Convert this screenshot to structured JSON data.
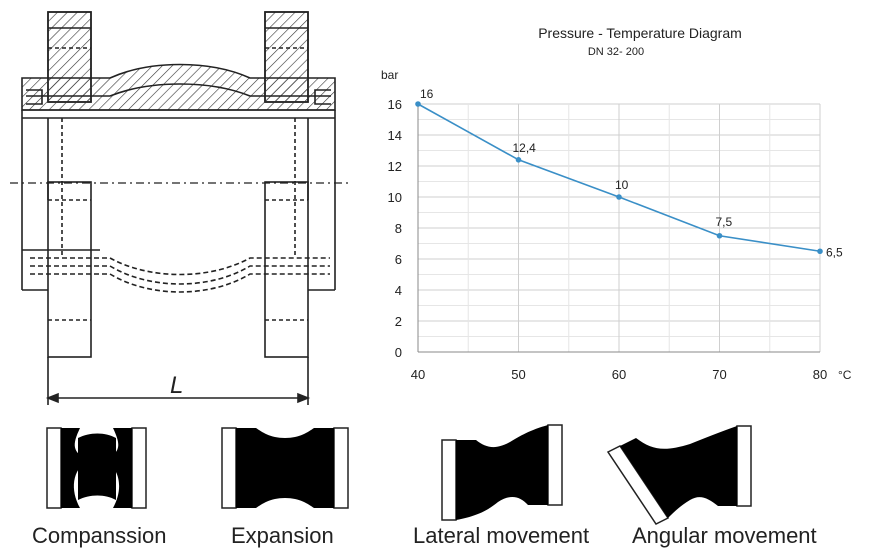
{
  "drawing": {
    "length_label": "L"
  },
  "chart_data": {
    "type": "line",
    "title": "Pressure - Temperature Diagram",
    "subtitle": "DN 32- 200",
    "ylabel": "bar",
    "xlabel": "°C",
    "x": [
      40,
      50,
      60,
      70,
      80
    ],
    "y": [
      16,
      12.4,
      10,
      7.5,
      6.5
    ],
    "point_labels": [
      "16",
      "12,4",
      "10",
      "7,5",
      "6,5"
    ],
    "xlim": [
      40,
      80
    ],
    "ylim": [
      0,
      16
    ],
    "xticks": [
      40,
      50,
      60,
      70,
      80
    ],
    "yticks": [
      0,
      2,
      4,
      6,
      8,
      10,
      12,
      14,
      16
    ],
    "grid": true,
    "line_color": "#3a8fc7"
  },
  "movements": [
    {
      "label": "Companssion"
    },
    {
      "label": "Expansion"
    },
    {
      "label": "Lateral movement"
    },
    {
      "label": "Angular movement"
    }
  ]
}
